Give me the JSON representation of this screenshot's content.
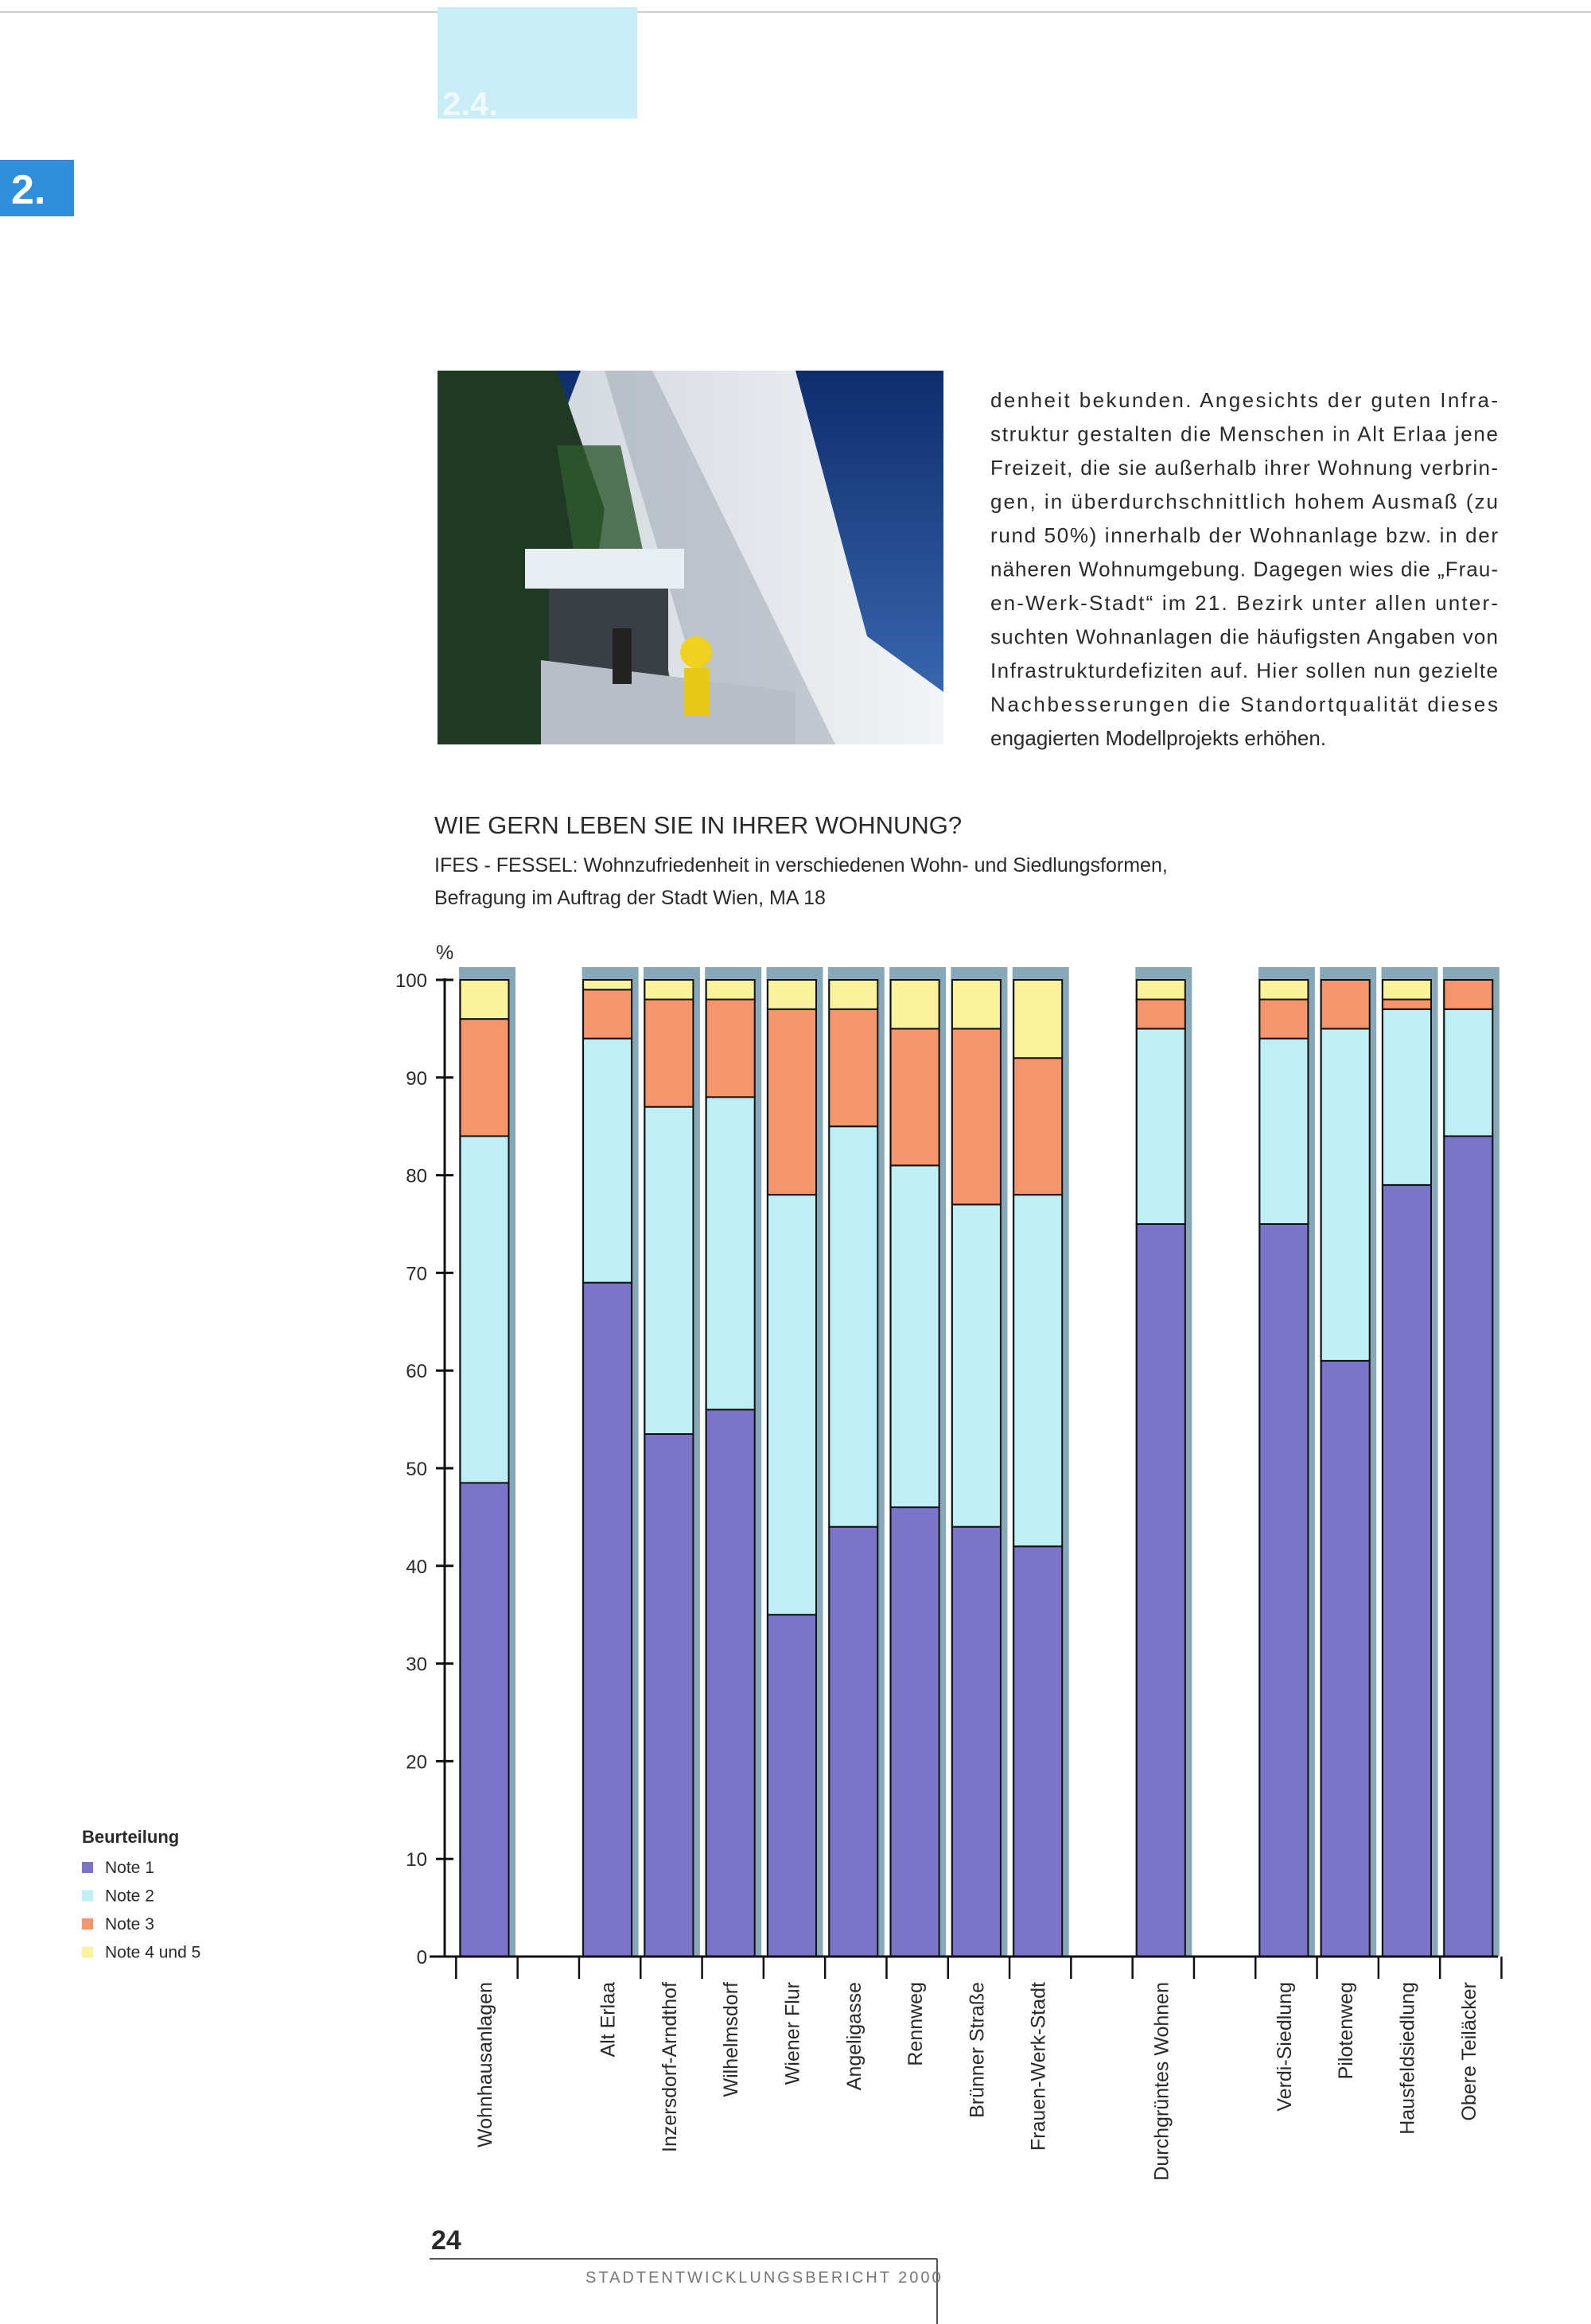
{
  "header": {
    "section": "2.",
    "subsection": "2.4."
  },
  "text": {
    "lines": [
      "denheit bekunden. Angesichts der guten Infra-",
      "struktur gestalten die Menschen in Alt Erlaa jene",
      "Freizeit, die sie außerhalb ihrer Wohnung verbrin-",
      "gen, in überdurchschnittlich hohem Ausmaß (zu",
      "rund 50%) innerhalb der Wohnanlage bzw. in der",
      "näheren Wohnumgebung. Dagegen wies die „Frau-",
      "en-Werk-Stadt“ im 21. Bezirk unter allen unter-",
      "suchten Wohnanlagen die häufigsten Angaben von",
      "Infrastrukturdefiziten auf. Hier sollen nun gezielte",
      "Nachbesserungen die Standortqualität dieses",
      "engagierten Modellprojekts erhöhen."
    ]
  },
  "chart_data": {
    "type": "stacked_bar",
    "title": "WIE GERN LEBEN SIE IN IHRER WOHNUNG?",
    "subtitle": [
      "IFES - FESSEL: Wohnzufriedenheit in verschiedenen Wohn- und Siedlungsformen,",
      "Befragung im Auftrag der Stadt Wien, MA 18"
    ],
    "y_label": "%",
    "legend_title": "Beurteilung",
    "categories": [
      "Wohnhausanlagen",
      null,
      "Alt Erlaa",
      "Inzersdorf-Arndthof",
      "Wilhelmsdorf",
      "Wiener Flur",
      "Angeligasse",
      "Rennweg",
      "Brünner Straße",
      "Frauen-Werk-Stadt",
      null,
      "Durchgrüntes Wohnen",
      null,
      "Verdi-Siedlung",
      "Pilotenweg",
      "Hausfeldsiedlung",
      "Obere Teiläcker"
    ],
    "series": [
      {
        "name": "Note 1",
        "color": "#7b74c9",
        "values": [
          48.5,
          null,
          69,
          53.5,
          56,
          35,
          44,
          46,
          44,
          42,
          null,
          75,
          null,
          75,
          61,
          79,
          84
        ]
      },
      {
        "name": "Note 2",
        "color": "#bdeff5",
        "values": [
          35.5,
          null,
          25,
          33.5,
          32,
          43,
          41,
          35,
          33,
          36,
          null,
          20,
          null,
          19,
          34,
          18,
          13
        ]
      },
      {
        "name": "Note 3",
        "color": "#f4956b",
        "values": [
          12,
          null,
          5,
          11,
          10,
          19,
          12,
          14,
          18,
          14,
          null,
          3,
          null,
          4,
          5,
          1,
          3
        ]
      },
      {
        "name": "Note 4 und 5",
        "color": "#fbf39c",
        "values": [
          4,
          null,
          1,
          2,
          2,
          3,
          3,
          5,
          5,
          8,
          null,
          2,
          null,
          2,
          0,
          2,
          0
        ]
      }
    ],
    "ylim": [
      0,
      100
    ],
    "yticks": [
      0,
      10,
      20,
      30,
      40,
      50,
      60,
      70,
      80,
      90,
      100
    ]
  },
  "footer": {
    "page": "24",
    "title": "STADTENTWICKLUNGSBERICHT 2000"
  }
}
